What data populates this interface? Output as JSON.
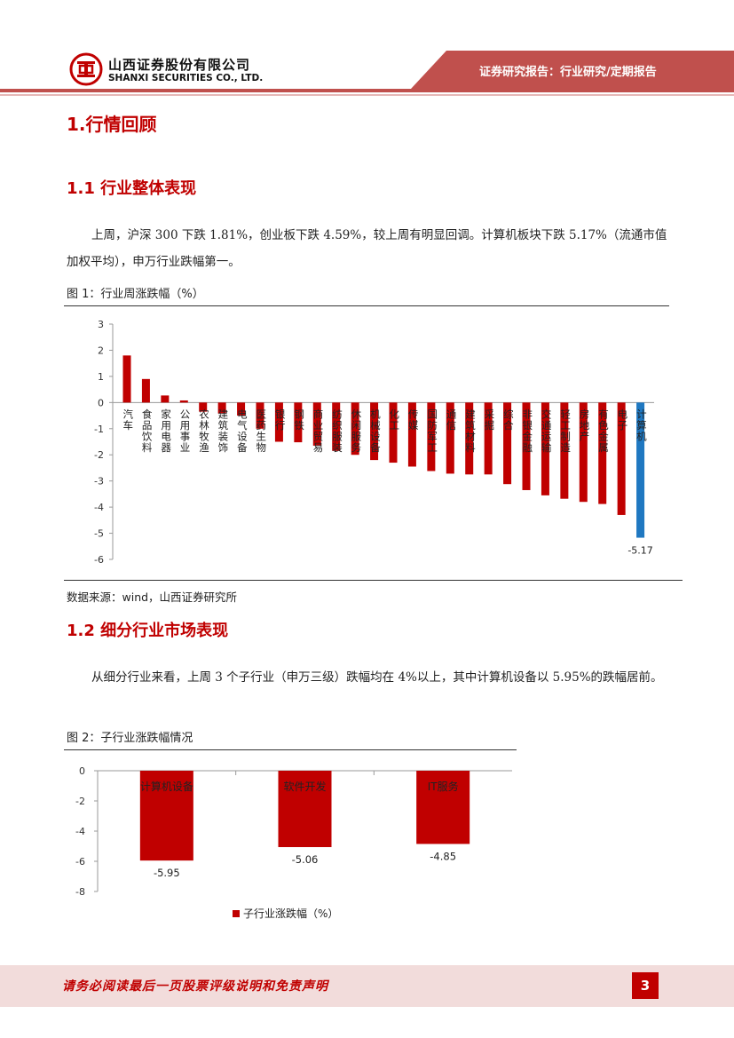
{
  "header": {
    "company_cn": "山西证券股份有限公司",
    "company_en": "SHANXI SECURITIES CO., LTD.",
    "report_type": "证券研究报告：行业研究/定期报告",
    "brand_color": "#c0504d"
  },
  "section1": {
    "title": "1.行情回顾",
    "sub1_title": "1.1 行业整体表现",
    "sub1_para": "上周，沪深 300 下跌 1.81%，创业板下跌 4.59%，较上周有明显回调。计算机板块下跌 5.17%（流通市值加权平均），申万行业跌幅第一。",
    "fig1_title": "图 1：行业周涨跌幅（%）",
    "fig1_source": "数据来源：wind，山西证券研究所",
    "sub2_title": "1.2 细分行业市场表现",
    "sub2_para": "从细分行业来看，上周 3 个子行业（申万三级）跌幅均在 4%以上，其中计算机设备以 5.95%的跌幅居前。",
    "fig2_title": "图 2：子行业涨跌幅情况"
  },
  "chart_data": [
    {
      "type": "bar",
      "title": "",
      "ylim": [
        -6,
        3
      ],
      "yticks": [
        "3",
        "2",
        "1",
        "0",
        "-1",
        "-2",
        "-3",
        "-4",
        "-5",
        "-6"
      ],
      "categories": [
        "汽车",
        "食品饮料",
        "家用电器",
        "公用事业",
        "农林牧渔",
        "建筑装饰",
        "电气设备",
        "医药生物",
        "银行",
        "钢铁",
        "商业贸易",
        "纺织服装",
        "休闲服务",
        "机械设备",
        "化工",
        "传媒",
        "国防军工",
        "通信",
        "建筑材料",
        "采掘",
        "综合",
        "非银金融",
        "交通运输",
        "轻工制造",
        "房地产",
        "有色金属",
        "电子",
        "计算机"
      ],
      "values": [
        1.8,
        0.9,
        0.27,
        0.08,
        -0.35,
        -0.42,
        -0.5,
        -1.0,
        -1.5,
        -1.52,
        -1.65,
        -1.85,
        -2.0,
        -2.2,
        -2.3,
        -2.45,
        -2.62,
        -2.72,
        -2.75,
        -2.75,
        -3.12,
        -3.35,
        -3.55,
        -3.68,
        -3.8,
        -3.88,
        -4.3,
        -5.17
      ],
      "highlight_category": "计算机",
      "highlight_label": "-5.17",
      "bar_color": "#c00000",
      "highlight_color": "#1f78c1"
    },
    {
      "type": "bar",
      "title": "",
      "ylim": [
        -8,
        0
      ],
      "yticks": [
        "0",
        "-2",
        "-4",
        "-6",
        "-8"
      ],
      "categories": [
        "计算机设备",
        "软件开发",
        "IT服务"
      ],
      "values": [
        -5.95,
        -5.06,
        -4.85
      ],
      "value_labels": [
        "-5.95",
        "-5.06",
        "-4.85"
      ],
      "series": [
        {
          "name": "子行业涨跌幅（%）",
          "values": [
            -5.95,
            -5.06,
            -4.85
          ]
        }
      ],
      "legend": "bottom",
      "bar_color": "#c00000"
    }
  ],
  "footer": {
    "disclaimer": "请务必阅读最后一页股票评级说明和免责声明",
    "page_number": "3"
  }
}
